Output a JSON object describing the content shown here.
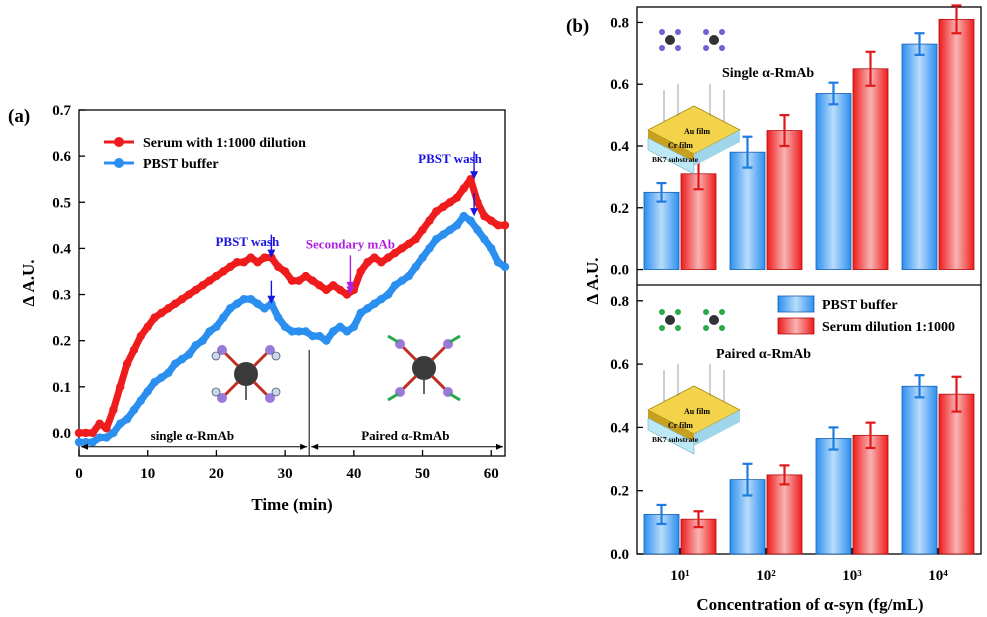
{
  "chart_data": [
    {
      "type": "line",
      "panel_label": "(a)",
      "xlabel": "Time (min)",
      "ylabel": "Δ A.U.",
      "xlim": [
        0,
        62
      ],
      "ylim": [
        -0.05,
        0.7
      ],
      "xticks": [
        "0",
        "10",
        "20",
        "30",
        "40",
        "50",
        "60"
      ],
      "yticks": [
        "0.0",
        "0.1",
        "0.2",
        "0.3",
        "0.4",
        "0.5",
        "0.6",
        "0.7"
      ],
      "legend_position": "top-left",
      "series": [
        {
          "name": "Serum with 1:1000 dilution",
          "color": "#ee1c1c",
          "x": [
            0,
            1,
            2,
            3,
            4,
            5,
            6,
            7,
            8,
            9,
            10,
            11,
            12,
            13,
            14,
            15,
            16,
            17,
            18,
            19,
            20,
            21,
            22,
            23,
            24,
            25,
            26,
            27,
            28,
            29,
            30,
            31,
            32,
            33,
            34,
            35,
            36,
            37,
            38,
            39,
            40,
            41,
            42,
            43,
            44,
            45,
            46,
            47,
            48,
            49,
            50,
            51,
            52,
            53,
            54,
            55,
            56,
            57,
            58,
            59,
            60,
            61,
            62
          ],
          "y": [
            0.0,
            0.0,
            0.0,
            0.02,
            0.01,
            0.05,
            0.1,
            0.15,
            0.18,
            0.21,
            0.23,
            0.25,
            0.26,
            0.27,
            0.28,
            0.29,
            0.3,
            0.31,
            0.32,
            0.33,
            0.34,
            0.35,
            0.36,
            0.37,
            0.37,
            0.38,
            0.37,
            0.38,
            0.38,
            0.36,
            0.35,
            0.33,
            0.33,
            0.34,
            0.33,
            0.32,
            0.31,
            0.32,
            0.31,
            0.3,
            0.31,
            0.35,
            0.37,
            0.38,
            0.37,
            0.38,
            0.39,
            0.4,
            0.41,
            0.42,
            0.44,
            0.46,
            0.48,
            0.49,
            0.5,
            0.51,
            0.53,
            0.55,
            0.5,
            0.47,
            0.46,
            0.45,
            0.45
          ]
        },
        {
          "name": "PBST buffer",
          "color": "#2b8ff0",
          "x": [
            0,
            1,
            2,
            3,
            4,
            5,
            6,
            7,
            8,
            9,
            10,
            11,
            12,
            13,
            14,
            15,
            16,
            17,
            18,
            19,
            20,
            21,
            22,
            23,
            24,
            25,
            26,
            27,
            28,
            29,
            30,
            31,
            32,
            33,
            34,
            35,
            36,
            37,
            38,
            39,
            40,
            41,
            42,
            43,
            44,
            45,
            46,
            47,
            48,
            49,
            50,
            51,
            52,
            53,
            54,
            55,
            56,
            57,
            58,
            59,
            60,
            61,
            62
          ],
          "y": [
            -0.02,
            -0.02,
            -0.02,
            -0.01,
            -0.01,
            0.0,
            0.02,
            0.03,
            0.05,
            0.07,
            0.09,
            0.11,
            0.12,
            0.13,
            0.15,
            0.16,
            0.17,
            0.19,
            0.2,
            0.22,
            0.23,
            0.25,
            0.27,
            0.28,
            0.29,
            0.29,
            0.28,
            0.27,
            0.28,
            0.25,
            0.23,
            0.22,
            0.22,
            0.22,
            0.21,
            0.21,
            0.2,
            0.22,
            0.23,
            0.22,
            0.23,
            0.26,
            0.27,
            0.28,
            0.29,
            0.3,
            0.32,
            0.33,
            0.34,
            0.36,
            0.38,
            0.4,
            0.42,
            0.43,
            0.44,
            0.45,
            0.47,
            0.46,
            0.44,
            0.42,
            0.4,
            0.37,
            0.36
          ]
        }
      ],
      "annotations": [
        {
          "text": "PBST wash",
          "color": "#1a14e0",
          "x": 24.5,
          "y": 0.405
        },
        {
          "text": "Secondary mAb",
          "color": "#b020e0",
          "x": 39.5,
          "y": 0.4
        },
        {
          "text": "PBST wash",
          "color": "#1a14e0",
          "x": 54,
          "y": 0.585
        },
        {
          "text": "single α-RmAb",
          "x": 16.5,
          "y": -0.015
        },
        {
          "text": "Paired α-RmAb",
          "x": 47.5,
          "y": -0.015
        }
      ],
      "arrows": [
        {
          "x": 28,
          "y_from": 0.43,
          "y_to": 0.38,
          "color": "#1a14e0"
        },
        {
          "x": 28,
          "y_from": 0.33,
          "y_to": 0.28,
          "color": "#1a14e0"
        },
        {
          "x": 39.5,
          "y_from": 0.385,
          "y_to": 0.31,
          "color": "#b020e0"
        },
        {
          "x": 39.5,
          "y_from": 0.34,
          "y_to": 0.3,
          "color": "#b020e0"
        },
        {
          "x": 57.5,
          "y_from": 0.61,
          "y_to": 0.55,
          "color": "#1a14e0"
        },
        {
          "x": 57.5,
          "y_from": 0.52,
          "y_to": 0.47,
          "color": "#1a14e0"
        }
      ],
      "divider_x": 33.5
    },
    {
      "type": "bar",
      "panel_label": "(b)",
      "xlabel": "Concentration of α-syn (fg/mL)",
      "ylabel": "Δ A.U.",
      "categories": [
        "10¹",
        "10²",
        "10³",
        "10⁴"
      ],
      "legend_position": "middle",
      "legend": [
        {
          "name": "PBST buffer",
          "color": "#2b8ff0"
        },
        {
          "name": "Serum dilution 1:1000",
          "color": "#ee1c1c"
        }
      ],
      "subplots": [
        {
          "title": "Single α-RmAb",
          "ylim": [
            -0.05,
            0.85
          ],
          "yticks": [
            "0.0",
            "0.2",
            "0.4",
            "0.6",
            "0.8"
          ],
          "series": [
            {
              "name": "PBST buffer",
              "values": [
                0.25,
                0.38,
                0.57,
                0.73
              ],
              "errors": [
                0.03,
                0.05,
                0.035,
                0.035
              ]
            },
            {
              "name": "Serum dilution 1:1000",
              "values": [
                0.31,
                0.45,
                0.65,
                0.81
              ],
              "errors": [
                0.05,
                0.05,
                0.055,
                0.045
              ]
            }
          ]
        },
        {
          "title": "Paired α-RmAb",
          "ylim": [
            0,
            0.85
          ],
          "yticks": [
            "0.0",
            "0.2",
            "0.4",
            "0.6",
            "0.8"
          ],
          "series": [
            {
              "name": "PBST buffer",
              "values": [
                0.125,
                0.235,
                0.365,
                0.53
              ],
              "errors": [
                0.03,
                0.05,
                0.035,
                0.035
              ]
            },
            {
              "name": "Serum dilution 1:1000",
              "values": [
                0.11,
                0.25,
                0.375,
                0.505
              ],
              "errors": [
                0.025,
                0.03,
                0.04,
                0.055
              ]
            }
          ]
        }
      ],
      "sensor_labels": [
        "Au film",
        "Cr film",
        "BK7 substrate"
      ]
    }
  ]
}
